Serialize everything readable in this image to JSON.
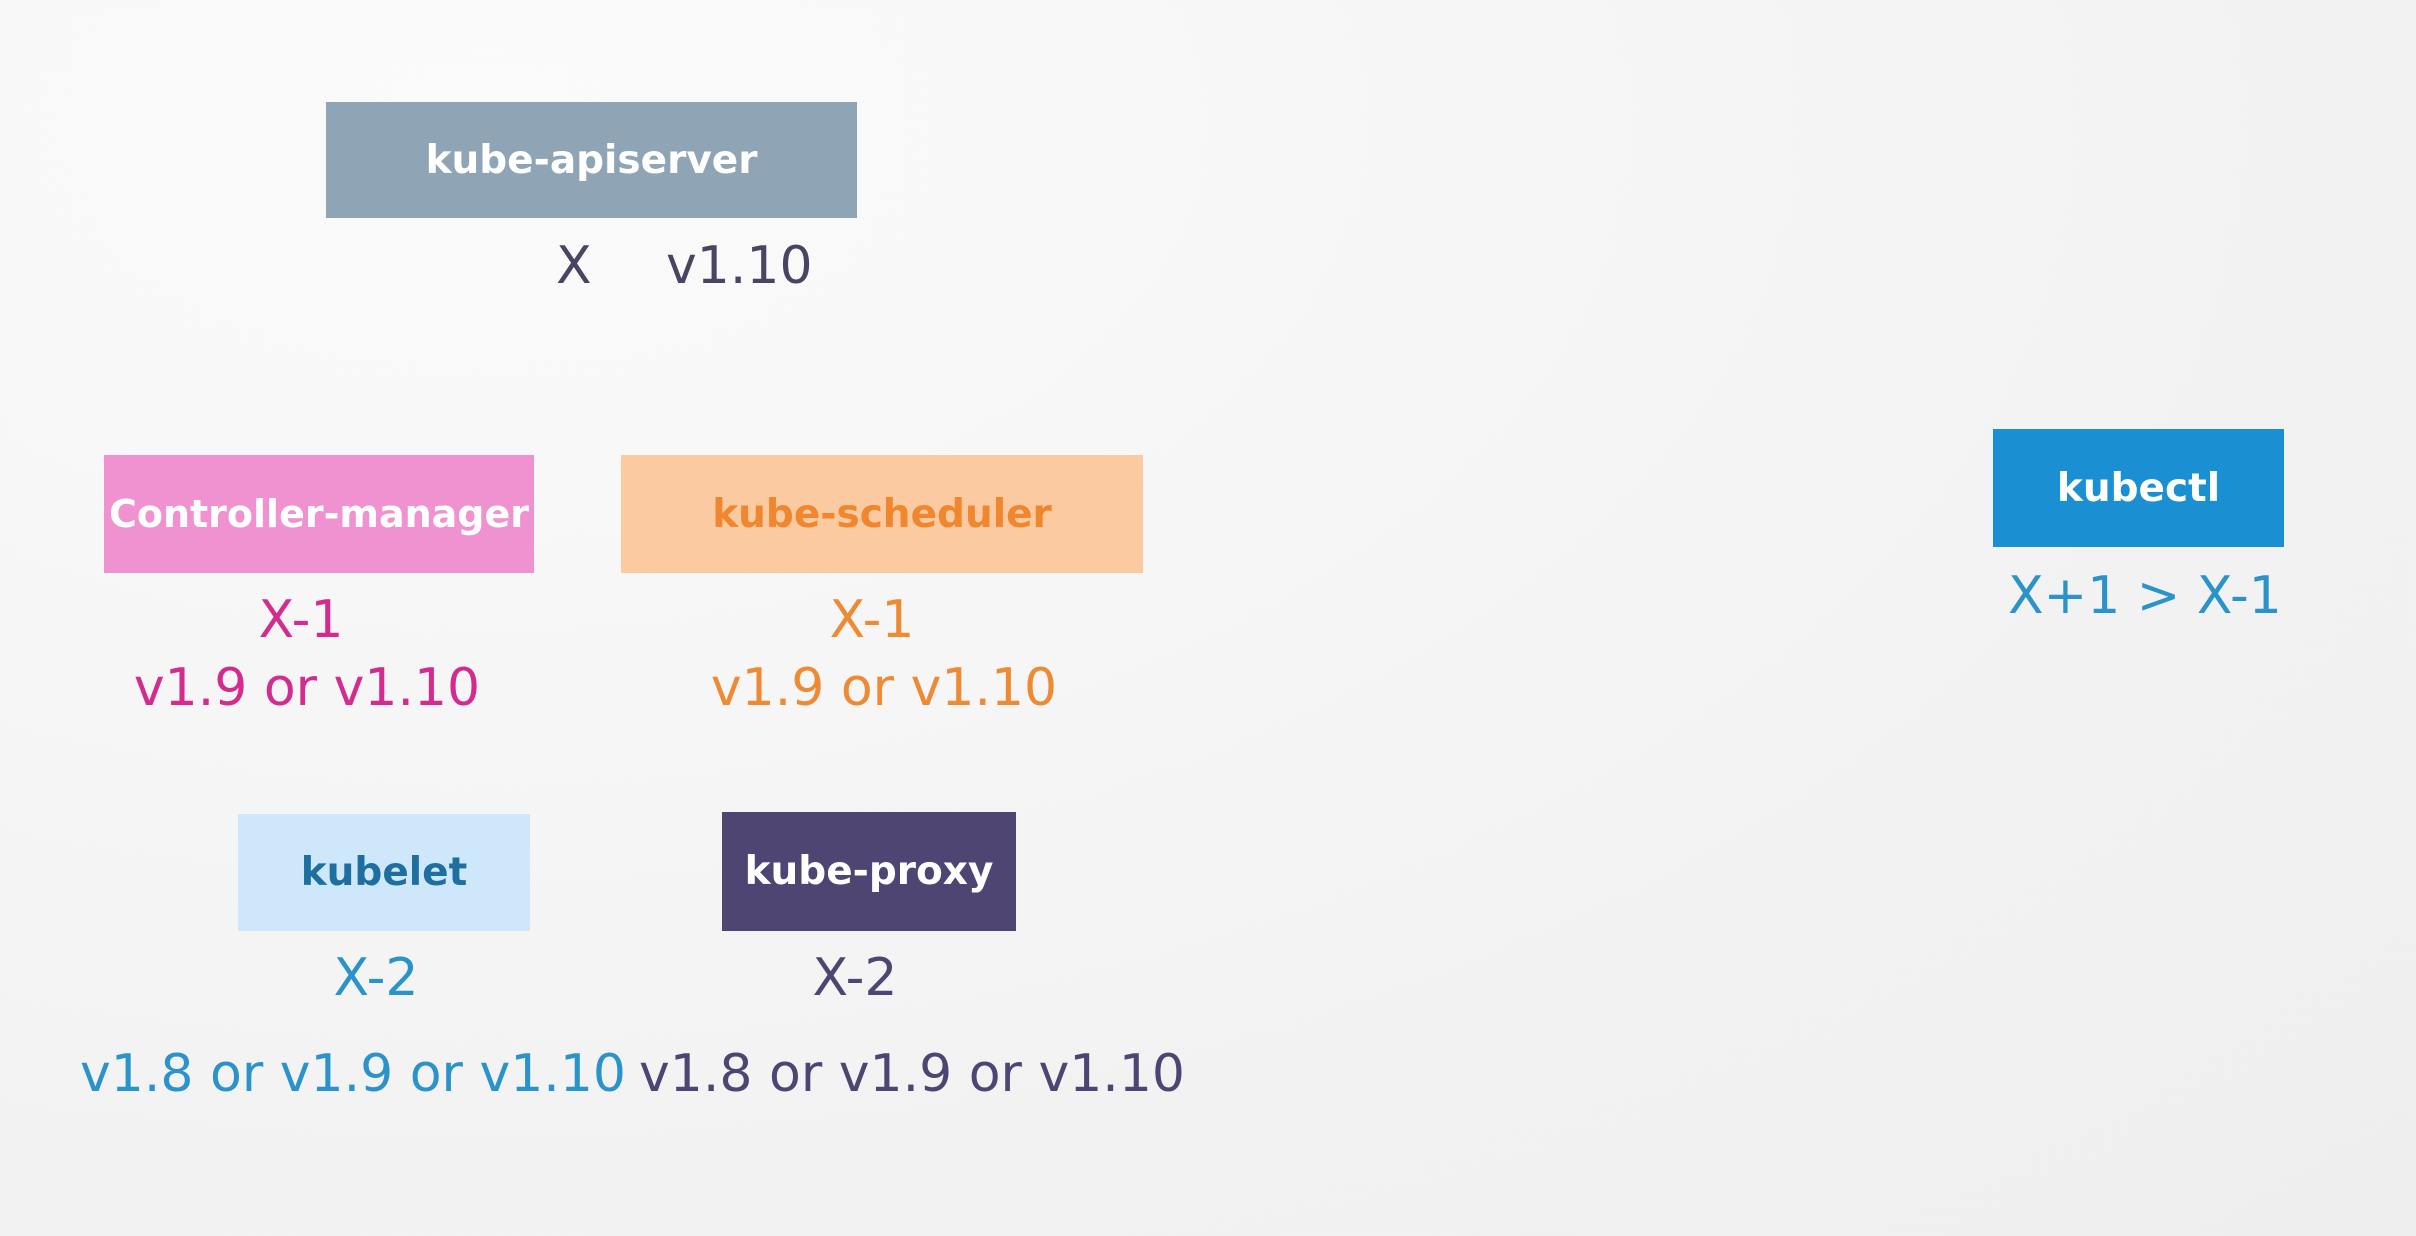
{
  "components": {
    "apiserver": {
      "name": "kube-apiserver",
      "relative": "X",
      "version": "v1.10",
      "color": "#8fa5b6"
    },
    "controller_manager": {
      "name": "Controller-manager",
      "relative": "X-1",
      "versions": "v1.9 or v1.10",
      "color": "#ef92cf",
      "text_color": "#d42b8f"
    },
    "kube_scheduler": {
      "name": "kube-scheduler",
      "relative": "X-1",
      "versions": "v1.9 or v1.10",
      "color": "#fbcaa0",
      "text_color": "#ee8a33"
    },
    "kubelet": {
      "name": "kubelet",
      "relative": "X-2",
      "versions": "v1.8 or v1.9 or v1.10",
      "color": "#cfe7fb",
      "text_color": "#2a93c9"
    },
    "kube_proxy": {
      "name": "kube-proxy",
      "relative": "X-2",
      "versions": "v1.8 or v1.9 or v1.10",
      "color": "#4e4572",
      "text_color": "#4e4572"
    },
    "kubectl": {
      "name": "kubectl",
      "relative": "X+1 > X-1",
      "color": "#1a8fd2",
      "text_color": "#2a93c9"
    }
  }
}
